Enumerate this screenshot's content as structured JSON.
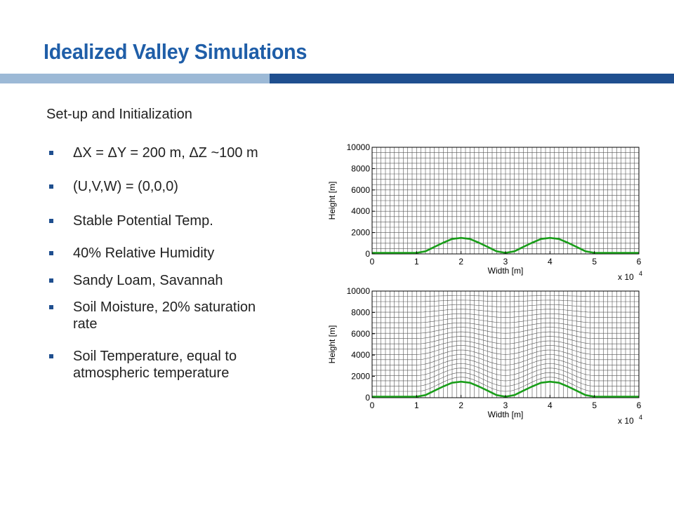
{
  "title": "Idealized Valley Simulations",
  "colors": {
    "title": "#1f5ea8",
    "bar_light": "#9cb9d6",
    "bar_dark": "#1f4f8f",
    "terrain": "#1a9e1a",
    "grid": "#555555"
  },
  "subtitle": "Set-up and Initialization",
  "bullets": [
    {
      "lines": [
        "ΔX = ΔY = 200 m, ΔZ ~100 m"
      ]
    },
    {
      "lines": [
        "(U,V,W) = (0,0,0)"
      ]
    },
    {
      "lines": [
        "Stable Potential Temp."
      ]
    },
    {
      "lines": [
        "40% Relative Humidity"
      ]
    },
    {
      "lines": [
        "Sandy Loam, Savannah"
      ]
    },
    {
      "lines": [
        "Soil Moisture, 20% saturation",
        "rate"
      ]
    },
    {
      "lines": [
        "Soil Temperature, equal to",
        "atmospheric temperature"
      ]
    }
  ],
  "chart_data": [
    {
      "type": "line",
      "xlabel": "Width [m]",
      "ylabel": "Height [m]",
      "x_multiplier": "x 10",
      "x_multiplier_exp": "4",
      "xlim": [
        0,
        60000
      ],
      "ylim": [
        0,
        10000
      ],
      "xticks": [
        "0",
        "1",
        "2",
        "3",
        "4",
        "5",
        "6"
      ],
      "yticks": [
        "0",
        "2000",
        "4000",
        "6000",
        "8000",
        "10000"
      ],
      "grid": "vertical lines every 1000 m in x; horizontal model levels evenly spaced about every 500 m, flat (not terrain-following)",
      "series": [
        {
          "x": [
            0,
            10000,
            12000,
            14000,
            16000,
            18000,
            20000,
            22000,
            24000,
            26000,
            28000,
            30000,
            32000,
            34000,
            36000,
            38000,
            40000,
            42000,
            44000,
            46000,
            48000,
            50000,
            60000
          ],
          "y": [
            100,
            100,
            245,
            650,
            1050,
            1400,
            1500,
            1400,
            1050,
            650,
            245,
            100,
            245,
            650,
            1050,
            1400,
            1500,
            1400,
            1050,
            650,
            245,
            100,
            100
          ]
        }
      ]
    },
    {
      "type": "line",
      "xlabel": "Width [m]",
      "ylabel": "Height [m]",
      "x_multiplier": "x 10",
      "x_multiplier_exp": "4",
      "xlim": [
        0,
        60000
      ],
      "ylim": [
        0,
        10000
      ],
      "xticks": [
        "0",
        "1",
        "2",
        "3",
        "4",
        "5",
        "6"
      ],
      "yticks": [
        "0",
        "2000",
        "4000",
        "6000",
        "8000",
        "10000"
      ],
      "grid": "vertical lines every 1000 m in x; terrain-following model levels about 500 m apart, converging to flat near 10000 m",
      "series": [
        {
          "x": [
            0,
            10000,
            12000,
            14000,
            16000,
            18000,
            20000,
            22000,
            24000,
            26000,
            28000,
            30000,
            32000,
            34000,
            36000,
            38000,
            40000,
            42000,
            44000,
            46000,
            48000,
            50000,
            60000
          ],
          "y": [
            100,
            100,
            245,
            650,
            1050,
            1400,
            1500,
            1400,
            1050,
            650,
            245,
            100,
            245,
            650,
            1050,
            1400,
            1500,
            1400,
            1050,
            650,
            245,
            100,
            100
          ]
        }
      ]
    }
  ]
}
